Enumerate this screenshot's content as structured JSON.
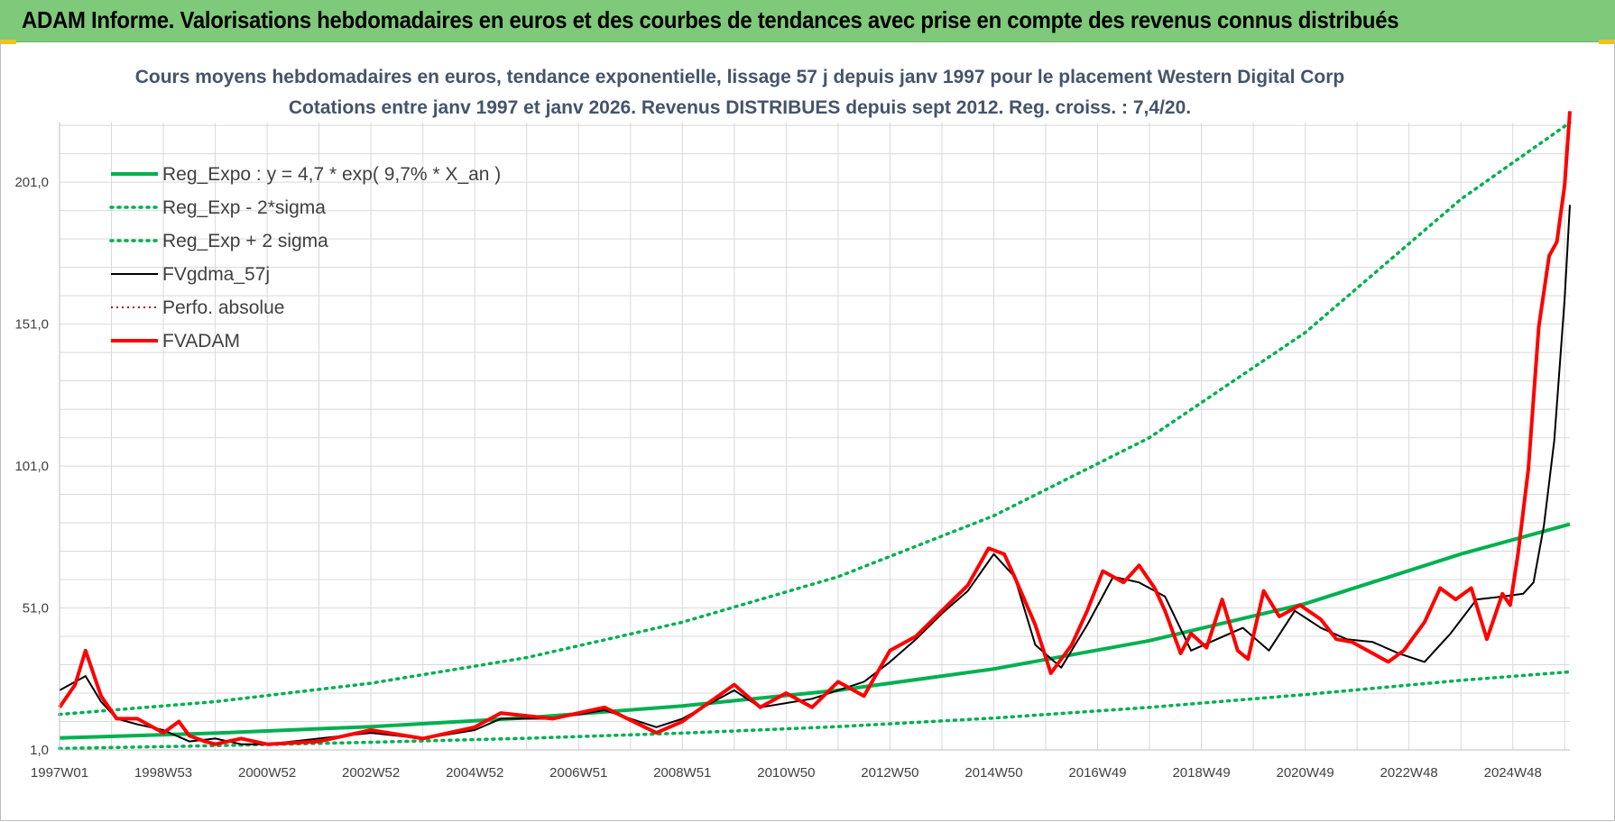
{
  "banner": {
    "title": "ADAM Informe. Valorisations hebdomadaires en euros et des courbes de tendances avec prise en compte des revenus connus distribués"
  },
  "colors": {
    "banner_bg": "#7fc97a",
    "reg_expo": "#00b050",
    "fvgdma": "#000000",
    "fvadam": "#ff0000",
    "perfo": "#c00000",
    "grid": "#d9d9d9"
  },
  "chart_data": {
    "type": "line",
    "title": "Cours moyens hebdomadaires en euros, tendance exponentielle, lissage 57 j depuis janv 1997 pour le placement Western Digital Corp",
    "subtitle": "Cotations entre janv 1997 et janv 2026. Revenus DISTRIBUES depuis sept 2012. Reg. croiss. : 7,4/20.",
    "xlabel": "",
    "ylabel": "",
    "x_range": [
      1997.0,
      2026.1
    ],
    "ylim": [
      1,
      222
    ],
    "y_ticks": [
      "1,0",
      "51,0",
      "101,0",
      "151,0",
      "201,0"
    ],
    "y_tick_values": [
      1,
      51,
      101,
      151,
      201
    ],
    "x_ticks": [
      "1997W01",
      "1998W53",
      "2000W52",
      "2002W52",
      "2004W52",
      "2006W51",
      "2008W51",
      "2010W50",
      "2012W50",
      "2014W50",
      "2016W49",
      "2018W49",
      "2020W49",
      "2022W48",
      "2024W48"
    ],
    "x_tick_values": [
      1997.0,
      1999.0,
      2001.0,
      2003.0,
      2005.0,
      2007.0,
      2009.0,
      2011.0,
      2013.0,
      2015.0,
      2017.0,
      2019.0,
      2021.0,
      2023.0,
      2025.0
    ],
    "grid": true,
    "legend_position": "top-left",
    "series": [
      {
        "name": "Reg_Expo : y = 4,7 * exp( 9,7% *  X_an )",
        "style": "solid-thick",
        "x": [
          1997.0,
          2000.0,
          2003.0,
          2006.0,
          2009.0,
          2012.0,
          2015.0,
          2018.0,
          2021.0,
          2024.0,
          2026.1
        ],
        "values": [
          5.2,
          6.9,
          9.2,
          12.3,
          16.5,
          22.0,
          29.5,
          39.5,
          52.5,
          70.0,
          80.5
        ]
      },
      {
        "name": "Reg_Exp - 2*sigma",
        "style": "dotted",
        "x": [
          1997.0,
          2000.0,
          2003.0,
          2006.0,
          2009.0,
          2012.0,
          2015.0,
          2018.0,
          2021.0,
          2024.0,
          2026.1
        ],
        "values": [
          1.5,
          2.5,
          3.7,
          5.1,
          6.9,
          9.2,
          12.2,
          16.0,
          20.5,
          25.5,
          28.5
        ]
      },
      {
        "name": "Reg_Exp + 2 sigma",
        "style": "dotted",
        "x": [
          1997.0,
          2000.0,
          2003.0,
          2006.0,
          2009.0,
          2012.0,
          2015.0,
          2018.0,
          2021.0,
          2024.0,
          2026.1
        ],
        "values": [
          13.5,
          18.0,
          24.5,
          33.5,
          46.0,
          62.0,
          83.5,
          111.0,
          148.0,
          195.0,
          222.0
        ]
      },
      {
        "name": "FVgdma_57j",
        "style": "solid-thin",
        "x": [
          1997.0,
          1997.5,
          1997.8,
          1998.1,
          1998.5,
          1999.0,
          1999.5,
          2000.0,
          2000.5,
          2001.0,
          2002.0,
          2003.0,
          2004.0,
          2005.0,
          2005.5,
          2006.5,
          2007.5,
          2008.5,
          2009.0,
          2010.0,
          2010.5,
          2011.5,
          2012.0,
          2012.5,
          2013.0,
          2013.5,
          2014.0,
          2014.5,
          2015.0,
          2015.4,
          2015.8,
          2016.3,
          2016.8,
          2017.3,
          2017.8,
          2018.3,
          2018.8,
          2019.3,
          2019.8,
          2020.3,
          2020.8,
          2021.3,
          2021.8,
          2022.3,
          2022.8,
          2023.3,
          2023.8,
          2024.3,
          2024.8,
          2025.2,
          2025.4,
          2025.6,
          2025.8,
          2026.0,
          2026.1
        ],
        "values": [
          22,
          27,
          18,
          12,
          10,
          8,
          4,
          5,
          3,
          3,
          5,
          7,
          5,
          8,
          12,
          12,
          15,
          9,
          12,
          22,
          16,
          19,
          22,
          25,
          32,
          40,
          49,
          57,
          70,
          62,
          38,
          30,
          45,
          62,
          60,
          55,
          36,
          40,
          44,
          36,
          50,
          44,
          40,
          39,
          35,
          32,
          42,
          54,
          55,
          56,
          60,
          80,
          110,
          160,
          193
        ]
      },
      {
        "name": "Perfo. absolue",
        "style": "dotted-thin",
        "x": [],
        "values": []
      },
      {
        "name": "FVADAM",
        "style": "solid-thick",
        "x": [
          1997.0,
          1997.3,
          1997.5,
          1997.8,
          1998.1,
          1998.5,
          1999.0,
          1999.3,
          1999.5,
          1999.8,
          2000.0,
          2000.5,
          2001.0,
          2002.0,
          2003.0,
          2004.0,
          2005.0,
          2005.5,
          2006.5,
          2007.5,
          2008.5,
          2009.0,
          2010.0,
          2010.5,
          2011.0,
          2011.5,
          2012.0,
          2012.5,
          2013.0,
          2013.5,
          2014.0,
          2014.5,
          2014.9,
          2015.2,
          2015.4,
          2015.8,
          2016.1,
          2016.5,
          2016.8,
          2017.1,
          2017.5,
          2017.8,
          2018.1,
          2018.3,
          2018.6,
          2018.8,
          2019.1,
          2019.4,
          2019.7,
          2019.9,
          2020.2,
          2020.5,
          2020.9,
          2021.3,
          2021.6,
          2021.9,
          2022.3,
          2022.6,
          2022.9,
          2023.3,
          2023.6,
          2023.9,
          2024.2,
          2024.5,
          2024.8,
          2024.95,
          2025.1,
          2025.3,
          2025.5,
          2025.7,
          2025.85,
          2026.0,
          2026.1
        ],
        "values": [
          16,
          24,
          36,
          20,
          12,
          12,
          7,
          11,
          6,
          4,
          3,
          5,
          3,
          4,
          8,
          5,
          9,
          14,
          12,
          16,
          7,
          11,
          24,
          16,
          21,
          16,
          25,
          20,
          36,
          41,
          50,
          59,
          72,
          70,
          62,
          45,
          28,
          38,
          50,
          64,
          60,
          66,
          58,
          50,
          35,
          42,
          37,
          54,
          36,
          33,
          57,
          48,
          52,
          47,
          40,
          39,
          35,
          32,
          36,
          46,
          58,
          54,
          58,
          40,
          56,
          52,
          70,
          100,
          150,
          175,
          180,
          200,
          226
        ]
      }
    ]
  }
}
